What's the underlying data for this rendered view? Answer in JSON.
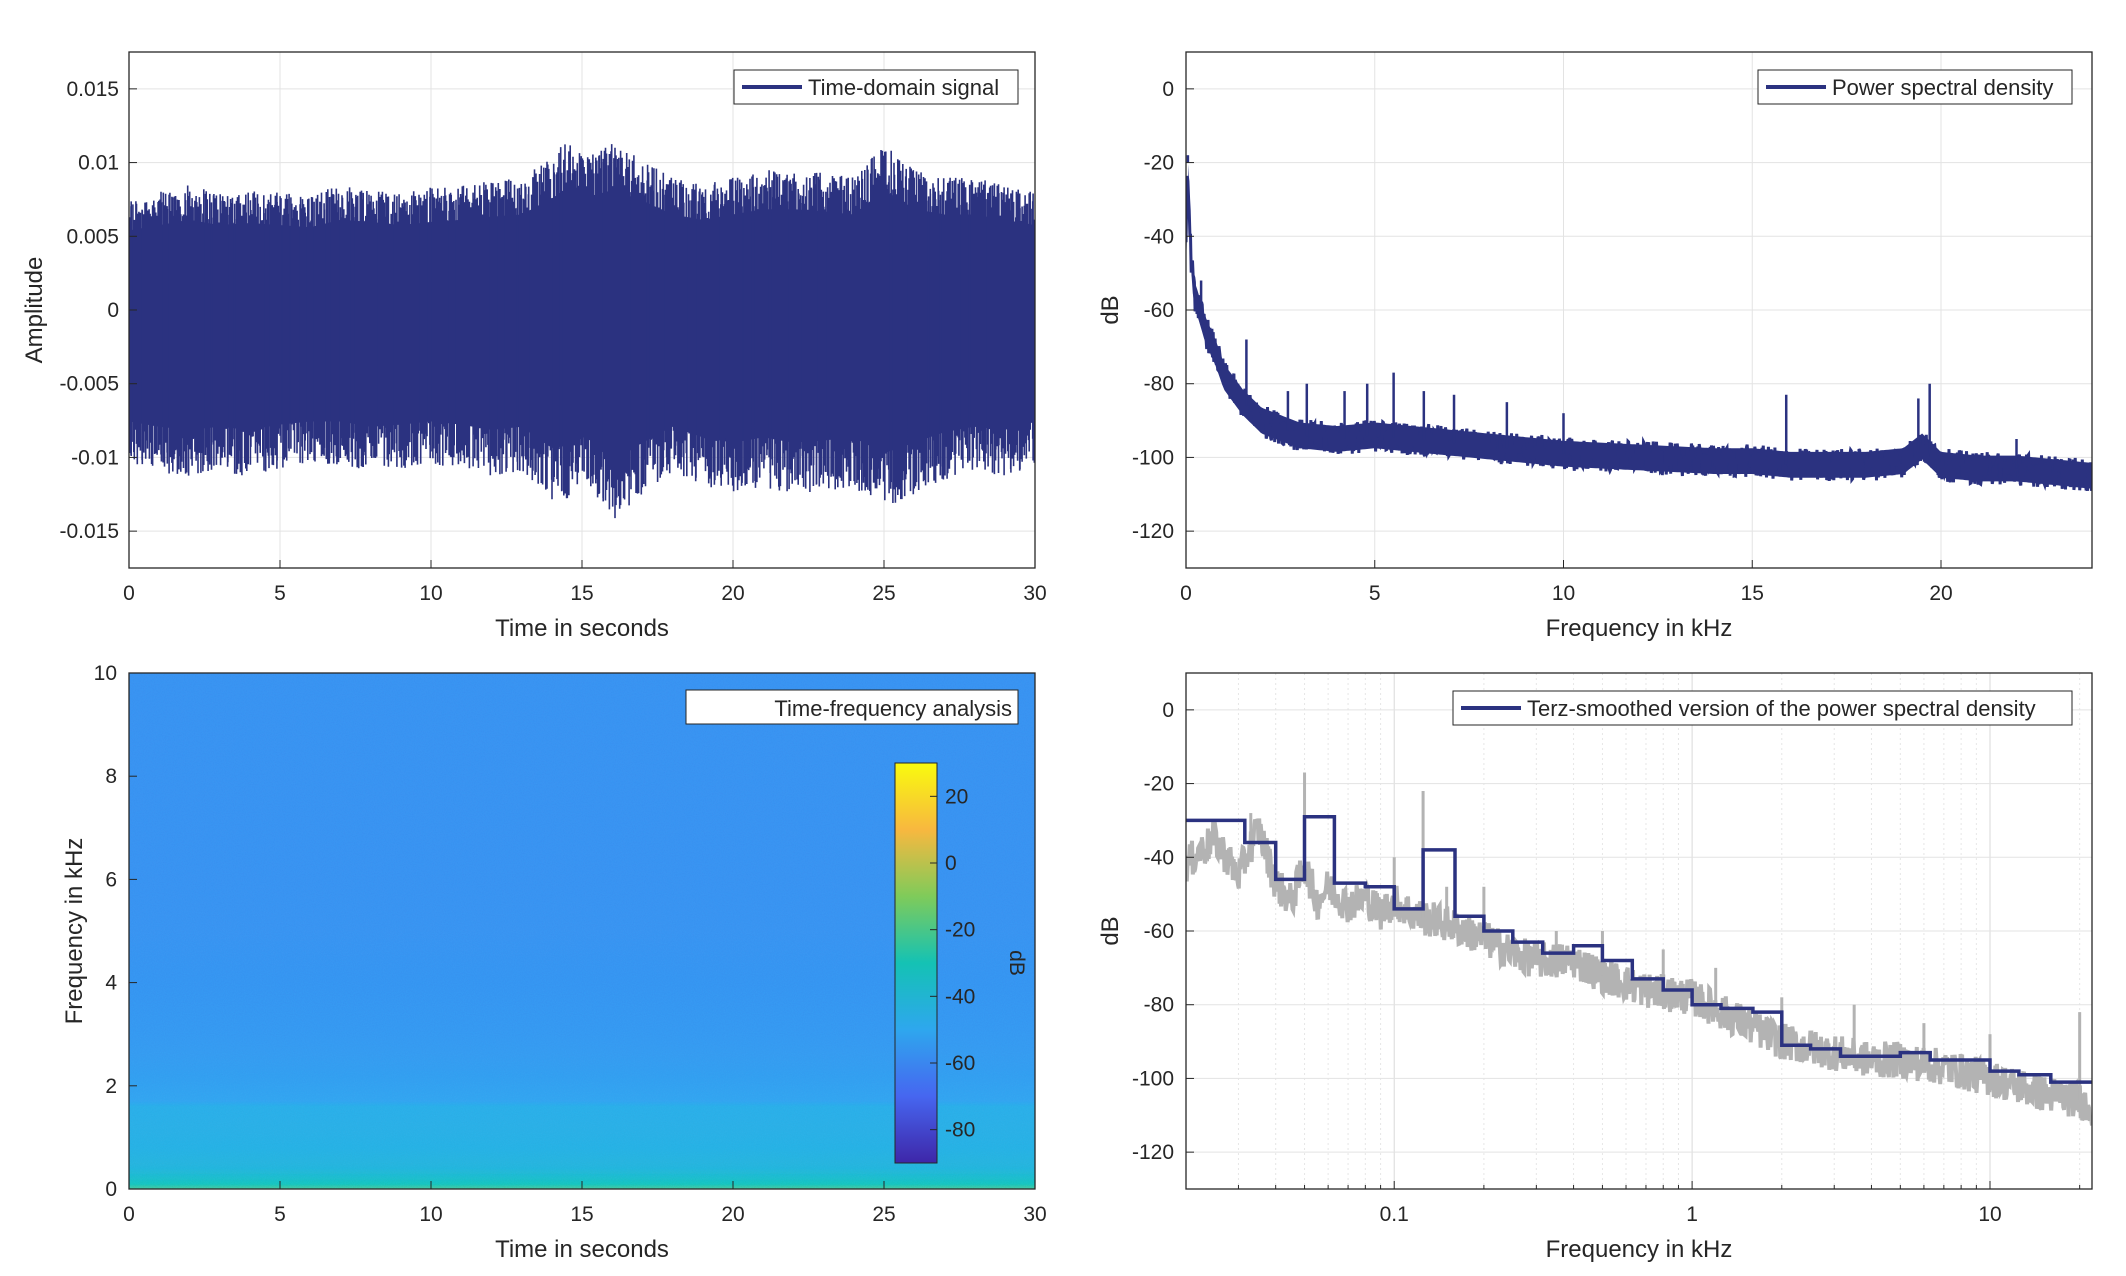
{
  "chart_data": [
    {
      "type": "line",
      "xlabel": "Time in seconds",
      "ylabel": "Amplitude",
      "xlim": [
        0,
        30
      ],
      "ylim": [
        -0.0175,
        0.0175
      ],
      "xticks": [
        0,
        5,
        10,
        15,
        20,
        25,
        30
      ],
      "yticks": [
        -0.015,
        -0.01,
        -0.005,
        0,
        0.005,
        0.01,
        0.015
      ],
      "ytick_labels": [
        "-0.015",
        "-0.01",
        "-0.005",
        "0",
        "0.005",
        "0.01",
        "0.015"
      ],
      "grid": true,
      "legend_position": "top-right",
      "series": [
        {
          "name": "Time-domain signal",
          "color": "#2b3280",
          "upper_envelope": {
            "x": [
              0,
              1,
              2,
              3,
              4,
              5,
              6,
              7,
              8,
              9,
              10,
              11,
              12,
              13,
              14,
              14.5,
              15,
              16,
              17,
              18,
              19,
              20,
              21,
              22,
              23,
              24,
              25,
              26,
              27,
              28,
              29,
              30
            ],
            "y": [
              0.0075,
              0.008,
              0.0085,
              0.008,
              0.0082,
              0.008,
              0.0078,
              0.0085,
              0.0083,
              0.008,
              0.0083,
              0.0085,
              0.0088,
              0.009,
              0.0105,
              0.0115,
              0.0105,
              0.0113,
              0.0103,
              0.009,
              0.0085,
              0.009,
              0.0095,
              0.0095,
              0.0093,
              0.009,
              0.0113,
              0.0095,
              0.009,
              0.009,
              0.0085,
              0.008
            ]
          },
          "lower_envelope": {
            "x": [
              0,
              1,
              2,
              3,
              4,
              5,
              6,
              7,
              8,
              9,
              10,
              11,
              12,
              13,
              14,
              14.5,
              15,
              16,
              17,
              18,
              19,
              20,
              21,
              22,
              23,
              24,
              25,
              26,
              27,
              28,
              29,
              30
            ],
            "y": [
              -0.0105,
              -0.011,
              -0.0113,
              -0.011,
              -0.0113,
              -0.0108,
              -0.0105,
              -0.0105,
              -0.011,
              -0.0108,
              -0.0105,
              -0.0108,
              -0.0113,
              -0.011,
              -0.013,
              -0.0128,
              -0.0115,
              -0.0143,
              -0.0125,
              -0.011,
              -0.012,
              -0.0125,
              -0.012,
              -0.0125,
              -0.0123,
              -0.012,
              -0.0135,
              -0.0125,
              -0.0115,
              -0.011,
              -0.0113,
              -0.0105
            ]
          }
        }
      ]
    },
    {
      "type": "line",
      "xlabel": "Frequency in kHz",
      "ylabel": "dB",
      "xlim": [
        0,
        24
      ],
      "ylim": [
        -130,
        10
      ],
      "xticks": [
        0,
        5,
        10,
        15,
        20
      ],
      "yticks": [
        -120,
        -100,
        -80,
        -60,
        -40,
        -20,
        0
      ],
      "grid": true,
      "legend_position": "top-right",
      "series": [
        {
          "name": "Power spectral density",
          "color": "#2b3280",
          "x": [
            0,
            0.05,
            0.1,
            0.2,
            0.3,
            0.5,
            0.8,
            1,
            1.5,
            2,
            3,
            4,
            5,
            6,
            7,
            8,
            9,
            10,
            12,
            14,
            15,
            16,
            17,
            18,
            19,
            19.5,
            20,
            21,
            22,
            23,
            24
          ],
          "y": [
            -45,
            -20,
            -40,
            -55,
            -58,
            -65,
            -72,
            -78,
            -85,
            -90,
            -94,
            -95,
            -94,
            -95,
            -96,
            -97,
            -98,
            -99,
            -100,
            -101,
            -101,
            -102,
            -102,
            -102,
            -101,
            -97,
            -102,
            -103,
            -103,
            -104,
            -105
          ],
          "peaks": {
            "x": [
              0.05,
              0.4,
              1.6,
              2.7,
              3.2,
              4.2,
              4.8,
              5.5,
              6.3,
              7.1,
              8.5,
              10,
              15.9,
              19.4,
              19.7,
              22
            ],
            "y": [
              -18,
              -52,
              -68,
              -82,
              -80,
              -82,
              -80,
              -77,
              -82,
              -83,
              -85,
              -88,
              -83,
              -84,
              -80,
              -95
            ]
          }
        }
      ]
    },
    {
      "type": "heatmap",
      "xlabel": "Time in seconds",
      "ylabel": "Frequency in kHz",
      "xlim": [
        0,
        30
      ],
      "ylim": [
        0,
        10
      ],
      "xticks": [
        0,
        5,
        10,
        15,
        20,
        25,
        30
      ],
      "yticks": [
        0,
        2,
        4,
        6,
        8,
        10
      ],
      "legend_position": "top-right",
      "legend_label": "Time-frequency analysis",
      "colorbar": {
        "label": "dB",
        "range": [
          -90,
          30
        ],
        "ticks": [
          -80,
          -60,
          -40,
          -20,
          0,
          20
        ],
        "colors": [
          "#3e26a8",
          "#4666f0",
          "#2ea7ee",
          "#14c2b4",
          "#7fcb5a",
          "#f8b83f",
          "#f9fb0e"
        ]
      },
      "frequency_profile_db": {
        "frequency": [
          0,
          0.1,
          0.2,
          0.4,
          0.8,
          1.2,
          1.6,
          1.7,
          2.2,
          3,
          4,
          6,
          8,
          10
        ],
        "db": [
          -20,
          -30,
          -35,
          -42,
          -45,
          -46,
          -47,
          -52,
          -54,
          -56,
          -57,
          -58,
          -58,
          -58
        ]
      }
    },
    {
      "type": "line",
      "xlabel": "Frequency in kHz",
      "ylabel": "dB",
      "xscale": "log",
      "xlim": [
        0.02,
        22
      ],
      "ylim": [
        -130,
        10
      ],
      "xticks": [
        0.1,
        1,
        10
      ],
      "yticks": [
        -120,
        -100,
        -80,
        -60,
        -40,
        -20,
        0
      ],
      "grid": true,
      "legend_position": "top-right",
      "series": [
        {
          "name": "",
          "color": "#b3b3b3",
          "x": [
            0.02,
            0.025,
            0.03,
            0.035,
            0.04,
            0.045,
            0.05,
            0.055,
            0.06,
            0.07,
            0.08,
            0.09,
            0.1,
            0.12,
            0.15,
            0.2,
            0.25,
            0.3,
            0.4,
            0.5,
            0.7,
            1,
            1.5,
            2,
            3,
            4,
            5,
            7,
            10,
            15,
            20,
            22
          ],
          "y": [
            -42,
            -35,
            -45,
            -32,
            -47,
            -52,
            -42,
            -52,
            -48,
            -53,
            -51,
            -55,
            -52,
            -56,
            -58,
            -62,
            -66,
            -68,
            -68,
            -72,
            -76,
            -78,
            -85,
            -90,
            -93,
            -95,
            -95,
            -97,
            -100,
            -104,
            -106,
            -108
          ],
          "peaks": {
            "x": [
              0.033,
              0.05,
              0.1,
              0.125,
              0.15,
              0.2,
              0.35,
              0.5,
              0.8,
              1.2,
              2.0,
              3.5,
              6,
              10,
              20
            ],
            "y": [
              -28,
              -17,
              -40,
              -22,
              -48,
              -48,
              -60,
              -60,
              -65,
              -70,
              -78,
              -80,
              -85,
              -88,
              -82
            ]
          }
        },
        {
          "name": "Terz-smoothed version of the power spectral density",
          "color": "#2b3280",
          "steps": {
            "x": [
              0.02,
              0.0315,
              0.04,
              0.05,
              0.063,
              0.08,
              0.1,
              0.125,
              0.16,
              0.2,
              0.25,
              0.315,
              0.4,
              0.5,
              0.63,
              0.8,
              1,
              1.25,
              1.6,
              2,
              2.5,
              3.15,
              4,
              5,
              6.3,
              8,
              10,
              12.5,
              16,
              22
            ],
            "y": [
              -30,
              -36,
              -46,
              -29,
              -47,
              -48,
              -54,
              -38,
              -56,
              -60,
              -63,
              -66,
              -64,
              -68,
              -73,
              -76,
              -80,
              -81,
              -82,
              -91,
              -92,
              -94,
              -94,
              -93,
              -95,
              -95,
              -98,
              -99,
              -101,
              -101
            ]
          }
        }
      ]
    }
  ]
}
